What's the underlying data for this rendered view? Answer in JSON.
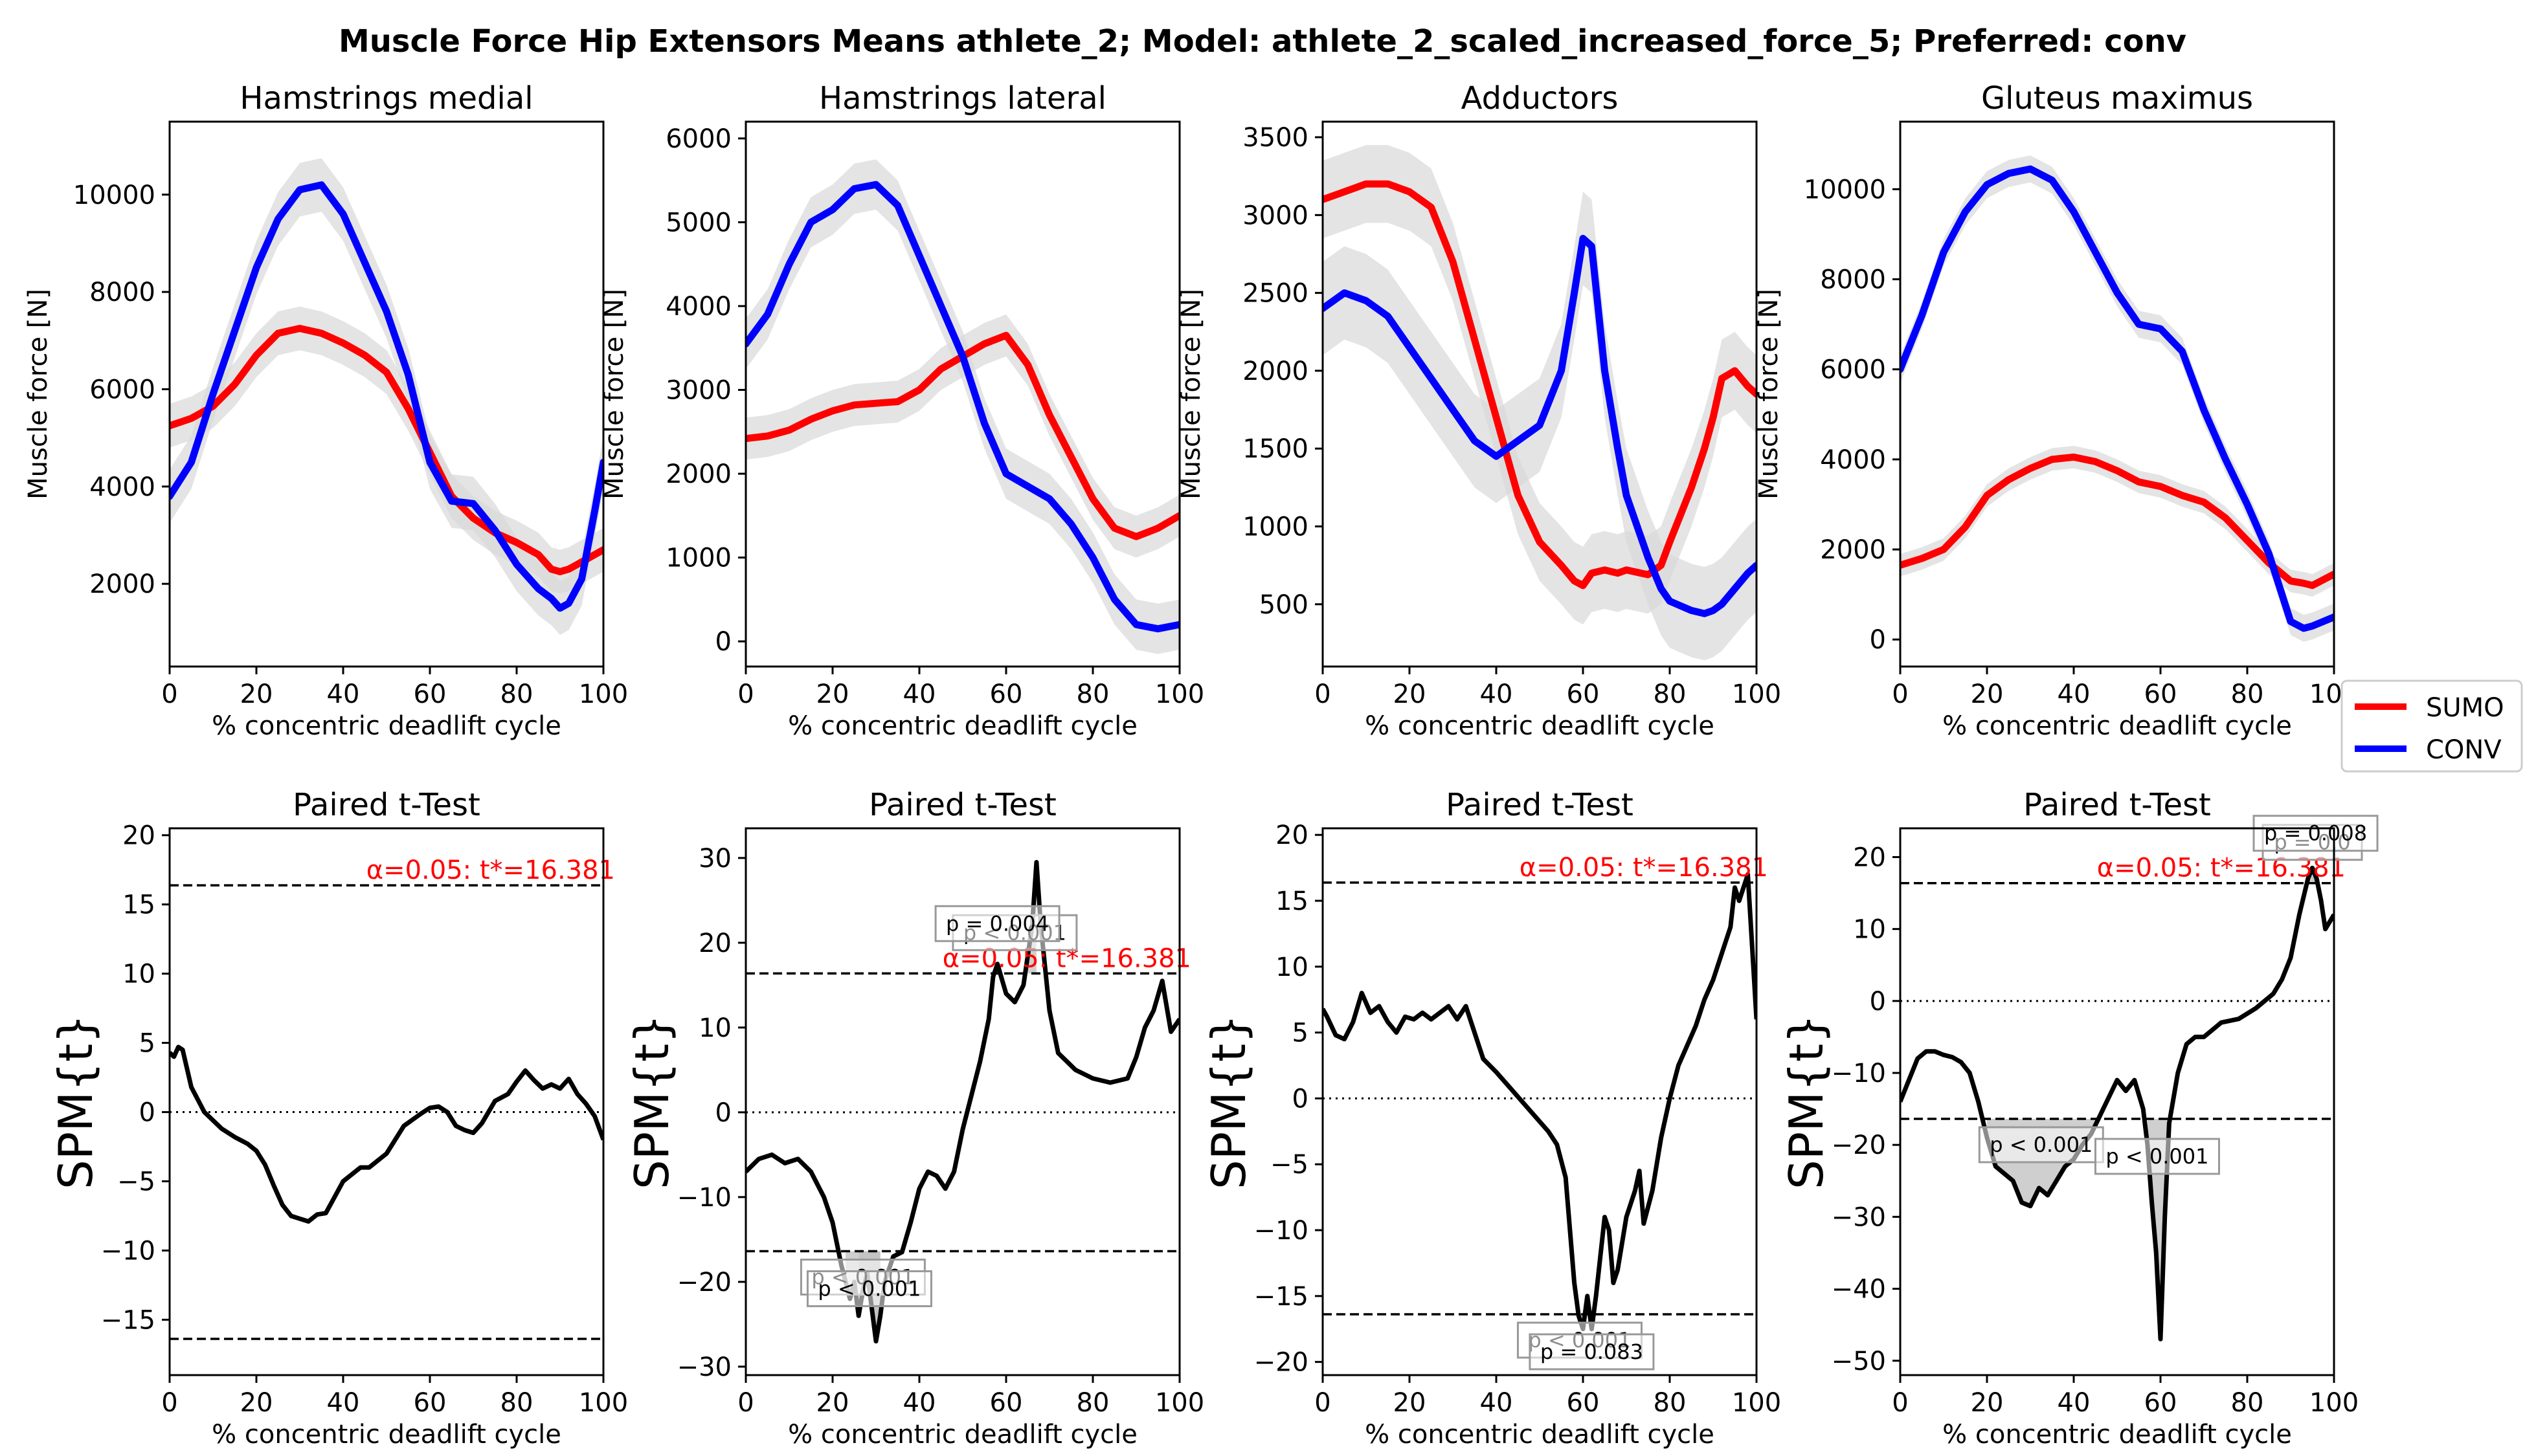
{
  "figure": {
    "suptitle": "Muscle Force Hip Extensors Means athlete_2; Model: athlete_2_scaled_increased_force_5; Preferred: conv"
  },
  "legend": {
    "items": [
      {
        "label": "SUMO",
        "color": "#ff0000"
      },
      {
        "label": "CONV",
        "color": "#0000ff"
      }
    ]
  },
  "chart_data": [
    {
      "type": "line",
      "title": "Hamstrings medial",
      "xlabel": "% concentric deadlift cycle",
      "ylabel": "Muscle force [N]",
      "xlim": [
        0,
        100
      ],
      "ylim": [
        300,
        11500
      ],
      "xticks": [
        0,
        20,
        40,
        60,
        80,
        100
      ],
      "yticks": [
        2000,
        4000,
        6000,
        8000,
        10000
      ],
      "x": [
        0,
        5,
        10,
        15,
        20,
        25,
        30,
        35,
        40,
        45,
        50,
        55,
        60,
        65,
        70,
        75,
        80,
        85,
        88,
        90,
        92,
        95,
        98,
        100
      ],
      "series": [
        {
          "name": "SUMO",
          "color": "#ff0000",
          "values": [
            5250,
            5400,
            5650,
            6100,
            6700,
            7150,
            7250,
            7150,
            6950,
            6700,
            6350,
            5600,
            4700,
            3800,
            3350,
            3050,
            2850,
            2600,
            2300,
            2250,
            2300,
            2450,
            2600,
            2700
          ],
          "band": 450
        },
        {
          "name": "CONV",
          "color": "#0000ff",
          "values": [
            3800,
            4500,
            5900,
            7200,
            8500,
            9500,
            10100,
            10200,
            9600,
            8600,
            7600,
            6300,
            4500,
            3700,
            3650,
            3100,
            2400,
            1900,
            1700,
            1500,
            1600,
            2100,
            3500,
            4500
          ],
          "band": 550
        }
      ]
    },
    {
      "type": "line",
      "title": "Hamstrings lateral",
      "xlabel": "% concentric deadlift cycle",
      "ylabel": "Muscle force [N]",
      "xlim": [
        0,
        100
      ],
      "ylim": [
        -300,
        6200
      ],
      "xticks": [
        0,
        20,
        40,
        60,
        80,
        100
      ],
      "yticks": [
        0,
        1000,
        2000,
        3000,
        4000,
        5000,
        6000
      ],
      "x": [
        0,
        5,
        10,
        15,
        20,
        25,
        30,
        35,
        40,
        45,
        50,
        55,
        60,
        65,
        70,
        75,
        80,
        85,
        90,
        95,
        100
      ],
      "series": [
        {
          "name": "SUMO",
          "color": "#ff0000",
          "values": [
            2420,
            2450,
            2520,
            2650,
            2750,
            2820,
            2840,
            2860,
            3000,
            3250,
            3400,
            3550,
            3650,
            3300,
            2700,
            2200,
            1700,
            1350,
            1250,
            1350,
            1500
          ],
          "band": 250
        },
        {
          "name": "CONV",
          "color": "#0000ff",
          "values": [
            3550,
            3900,
            4500,
            5000,
            5150,
            5400,
            5450,
            5200,
            4600,
            4000,
            3400,
            2600,
            2000,
            1850,
            1700,
            1400,
            1000,
            500,
            200,
            150,
            200
          ],
          "band": 300
        }
      ]
    },
    {
      "type": "line",
      "title": "Adductors",
      "xlabel": "% concentric deadlift cycle",
      "ylabel": "Muscle force [N]",
      "xlim": [
        0,
        100
      ],
      "ylim": [
        100,
        3600
      ],
      "xticks": [
        0,
        20,
        40,
        60,
        80,
        100
      ],
      "yticks": [
        500,
        1000,
        1500,
        2000,
        2500,
        3000,
        3500
      ],
      "x": [
        0,
        5,
        10,
        15,
        20,
        25,
        30,
        35,
        40,
        45,
        50,
        55,
        58,
        60,
        62,
        65,
        68,
        70,
        75,
        78,
        80,
        85,
        88,
        90,
        92,
        95,
        98,
        100
      ],
      "series": [
        {
          "name": "SUMO",
          "color": "#ff0000",
          "values": [
            3100,
            3150,
            3200,
            3200,
            3150,
            3050,
            2700,
            2200,
            1700,
            1200,
            900,
            750,
            650,
            620,
            700,
            720,
            700,
            720,
            690,
            750,
            900,
            1250,
            1500,
            1700,
            1950,
            2000,
            1900,
            1850
          ],
          "band": 250
        },
        {
          "name": "CONV",
          "color": "#0000ff",
          "values": [
            2400,
            2500,
            2450,
            2350,
            2150,
            1950,
            1750,
            1550,
            1450,
            1550,
            1650,
            2000,
            2500,
            2850,
            2800,
            2000,
            1500,
            1200,
            800,
            600,
            520,
            460,
            440,
            460,
            500,
            600,
            700,
            750
          ],
          "band": 300
        }
      ]
    },
    {
      "type": "line",
      "title": "Gluteus maximus",
      "xlabel": "% concentric deadlift cycle",
      "ylabel": "Muscle force [N]",
      "xlim": [
        0,
        100
      ],
      "ylim": [
        -600,
        11500
      ],
      "xticks": [
        0,
        20,
        40,
        60,
        80,
        100
      ],
      "yticks": [
        0,
        2000,
        4000,
        6000,
        8000,
        10000
      ],
      "x": [
        0,
        5,
        10,
        15,
        20,
        25,
        30,
        35,
        40,
        45,
        50,
        55,
        60,
        65,
        70,
        75,
        80,
        85,
        90,
        93,
        95,
        100
      ],
      "series": [
        {
          "name": "SUMO",
          "color": "#ff0000",
          "values": [
            1650,
            1800,
            2000,
            2500,
            3200,
            3550,
            3800,
            4000,
            4050,
            3950,
            3750,
            3500,
            3400,
            3200,
            3050,
            2700,
            2200,
            1700,
            1300,
            1250,
            1200,
            1450
          ],
          "band": 250
        },
        {
          "name": "CONV",
          "color": "#0000ff",
          "values": [
            6000,
            7200,
            8600,
            9500,
            10100,
            10350,
            10450,
            10200,
            9500,
            8600,
            7700,
            7000,
            6900,
            6400,
            5100,
            4000,
            3000,
            1900,
            400,
            250,
            300,
            500
          ],
          "band": 300
        }
      ]
    },
    {
      "type": "line",
      "title": "Paired t-Test",
      "xlabel": "% concentric deadlift cycle",
      "ylabel": "SPM{t}",
      "xlim": [
        0,
        100
      ],
      "ylim": [
        -19,
        20.5
      ],
      "xticks": [
        0,
        20,
        40,
        60,
        80,
        100
      ],
      "yticks": [
        -15,
        -10,
        -5,
        0,
        5,
        10,
        15,
        20
      ],
      "threshold": 16.381,
      "critical_label": "α=0.05:  t*=16.381",
      "x": [
        0,
        1,
        2,
        3,
        5,
        8,
        12,
        15,
        18,
        20,
        22,
        24,
        26,
        28,
        30,
        32,
        34,
        36,
        40,
        44,
        46,
        48,
        50,
        54,
        58,
        60,
        62,
        64,
        66,
        68,
        70,
        72,
        75,
        78,
        80,
        82,
        84,
        86,
        88,
        90,
        92,
        94,
        96,
        98,
        100
      ],
      "series": [
        {
          "name": "SPM{t}",
          "color": "#000000",
          "values": [
            4.3,
            4.0,
            4.7,
            4.5,
            1.8,
            0.0,
            -1.2,
            -1.8,
            -2.3,
            -2.8,
            -3.8,
            -5.3,
            -6.7,
            -7.5,
            -7.7,
            -7.9,
            -7.4,
            -7.3,
            -5.0,
            -4.0,
            -4.0,
            -3.5,
            -3.0,
            -1.0,
            -0.1,
            0.3,
            0.4,
            0.0,
            -1.0,
            -1.3,
            -1.5,
            -0.8,
            0.8,
            1.3,
            2.2,
            3.0,
            2.3,
            1.7,
            2.0,
            1.7,
            2.4,
            1.3,
            0.6,
            -0.3,
            -2.0
          ]
        }
      ],
      "clusters": []
    },
    {
      "type": "line",
      "title": "Paired t-Test",
      "xlabel": "% concentric deadlift cycle",
      "ylabel": "SPM{t}",
      "xlim": [
        0,
        100
      ],
      "ylim": [
        -31,
        33.5
      ],
      "xticks": [
        0,
        20,
        40,
        60,
        80,
        100
      ],
      "yticks": [
        -30,
        -20,
        -10,
        0,
        10,
        20,
        30
      ],
      "threshold": 16.381,
      "critical_label": "α=0.05:  t*=16.381",
      "x": [
        0,
        3,
        6,
        9,
        12,
        15,
        18,
        20,
        22,
        24,
        25,
        26,
        27,
        28,
        29,
        30,
        31,
        32,
        34,
        36,
        38,
        40,
        42,
        44,
        46,
        48,
        50,
        52,
        54,
        56,
        57,
        58,
        60,
        62,
        64,
        66,
        67,
        68,
        70,
        72,
        76,
        80,
        84,
        88,
        90,
        92,
        94,
        96,
        98,
        100
      ],
      "series": [
        {
          "name": "SPM{t}",
          "color": "#000000",
          "values": [
            -7.0,
            -5.5,
            -5.0,
            -6.0,
            -5.5,
            -7.0,
            -10.0,
            -13.0,
            -18.0,
            -22.0,
            -20.0,
            -24.0,
            -21.0,
            -19.0,
            -23.0,
            -27.0,
            -24.0,
            -20.0,
            -17.0,
            -16.5,
            -13.0,
            -9.0,
            -7.0,
            -7.5,
            -9.0,
            -7.0,
            -2.0,
            2.0,
            6.0,
            11.0,
            16.0,
            17.5,
            14.0,
            13.0,
            15.0,
            22.0,
            29.5,
            22.0,
            12.0,
            7.0,
            5.0,
            4.0,
            3.5,
            4.0,
            6.5,
            10.0,
            12.0,
            15.5,
            9.5,
            11.0
          ]
        }
      ],
      "clusters": [
        {
          "x0": 23,
          "x1": 31,
          "side": "low",
          "p": "p < 0.001"
        },
        {
          "x0": 26,
          "x1": 31,
          "side": "low",
          "p": "p < 0.001"
        },
        {
          "x0": 57,
          "x1": 67,
          "side": "high",
          "p": "p < 0.001"
        },
        {
          "x0": 56,
          "x1": 60,
          "side": "high",
          "p": "p = 0.004"
        }
      ]
    },
    {
      "type": "line",
      "title": "Paired t-Test",
      "xlabel": "% concentric deadlift cycle",
      "ylabel": "SPM{t}",
      "xlim": [
        0,
        100
      ],
      "ylim": [
        -21,
        20.5
      ],
      "xticks": [
        0,
        20,
        40,
        60,
        80,
        100
      ],
      "yticks": [
        -20,
        -15,
        -10,
        -5,
        0,
        5,
        10,
        15,
        20
      ],
      "threshold": 16.381,
      "critical_label": "α=0.05:  t*=16.381",
      "x": [
        0,
        1,
        3,
        5,
        7,
        9,
        11,
        13,
        15,
        17,
        19,
        21,
        23,
        25,
        27,
        29,
        31,
        33,
        35,
        37,
        40,
        44,
        48,
        52,
        54,
        56,
        57,
        58,
        59,
        60,
        61,
        62,
        63,
        64,
        65,
        66,
        67,
        68,
        70,
        72,
        73,
        74,
        76,
        78,
        80,
        82,
        84,
        86,
        88,
        90,
        92,
        94,
        95,
        96,
        97,
        98,
        100
      ],
      "series": [
        {
          "name": "SPM{t}",
          "color": "#000000",
          "values": [
            6.8,
            6.2,
            4.8,
            4.5,
            5.8,
            8.0,
            6.5,
            7.0,
            5.8,
            5.0,
            6.2,
            6.0,
            6.5,
            6.0,
            6.5,
            7.0,
            6.0,
            7.0,
            5.0,
            3.0,
            2.0,
            0.5,
            -1.0,
            -2.5,
            -3.5,
            -6.0,
            -10.0,
            -14.0,
            -16.5,
            -17.5,
            -15.0,
            -17.5,
            -15.0,
            -12.0,
            -9.0,
            -10.0,
            -14.0,
            -13.0,
            -9.0,
            -7.0,
            -5.5,
            -9.5,
            -7.0,
            -3.0,
            0.0,
            2.5,
            4.0,
            5.5,
            7.5,
            9.0,
            11.0,
            13.0,
            16.0,
            15.0,
            16.0,
            17.0,
            6.0
          ]
        }
      ],
      "clusters": [
        {
          "x0": 58,
          "x1": 60.5,
          "side": "low",
          "p": "p < 0.001"
        },
        {
          "x0": 61.5,
          "x1": 62.5,
          "side": "low",
          "p": "p = 0.083"
        }
      ]
    },
    {
      "type": "line",
      "title": "Paired t-Test",
      "xlabel": "% concentric deadlift cycle",
      "ylabel": "SPM{t}",
      "xlim": [
        0,
        100
      ],
      "ylim": [
        -52,
        24
      ],
      "xticks": [
        0,
        20,
        40,
        60,
        80,
        100
      ],
      "yticks": [
        -50,
        -40,
        -30,
        -20,
        -10,
        0,
        10,
        20
      ],
      "threshold": 16.381,
      "critical_label": "α=0.05:  t*=16.381",
      "x": [
        0,
        2,
        4,
        6,
        8,
        10,
        12,
        14,
        16,
        18,
        20,
        22,
        24,
        26,
        28,
        30,
        32,
        34,
        36,
        38,
        40,
        42,
        44,
        46,
        48,
        50,
        52,
        54,
        56,
        57,
        58,
        59,
        60,
        61,
        62,
        64,
        66,
        68,
        70,
        74,
        78,
        82,
        86,
        88,
        90,
        92,
        94,
        95,
        96,
        97,
        98,
        100
      ],
      "series": [
        {
          "name": "SPM{t}",
          "color": "#000000",
          "values": [
            -14.0,
            -11.0,
            -8.0,
            -7.0,
            -7.0,
            -7.5,
            -7.8,
            -8.5,
            -10.0,
            -14.0,
            -19.0,
            -23.0,
            -24.0,
            -25.0,
            -28.0,
            -28.5,
            -26.0,
            -27.0,
            -25.0,
            -23.0,
            -22.0,
            -20.0,
            -18.5,
            -16.0,
            -13.5,
            -11.0,
            -12.5,
            -11.0,
            -15.0,
            -20.0,
            -28.0,
            -35.0,
            -47.0,
            -30.0,
            -17.0,
            -10.0,
            -6.0,
            -5.0,
            -5.0,
            -3.0,
            -2.5,
            -1.0,
            1.0,
            3.0,
            6.0,
            12.0,
            17.0,
            18.5,
            17.0,
            14.0,
            10.0,
            12.0
          ]
        }
      ],
      "clusters": [
        {
          "x0": 20,
          "x1": 45,
          "side": "low",
          "p": "p < 0.001"
        },
        {
          "x0": 57,
          "x1": 61.5,
          "side": "low",
          "p": "p < 0.001"
        },
        {
          "x0": 94,
          "x1": 96,
          "side": "high",
          "p": "p = 0.0"
        },
        {
          "x0": 95,
          "x1": 96.5,
          "side": "high",
          "p": "p = 0.008"
        }
      ]
    }
  ]
}
